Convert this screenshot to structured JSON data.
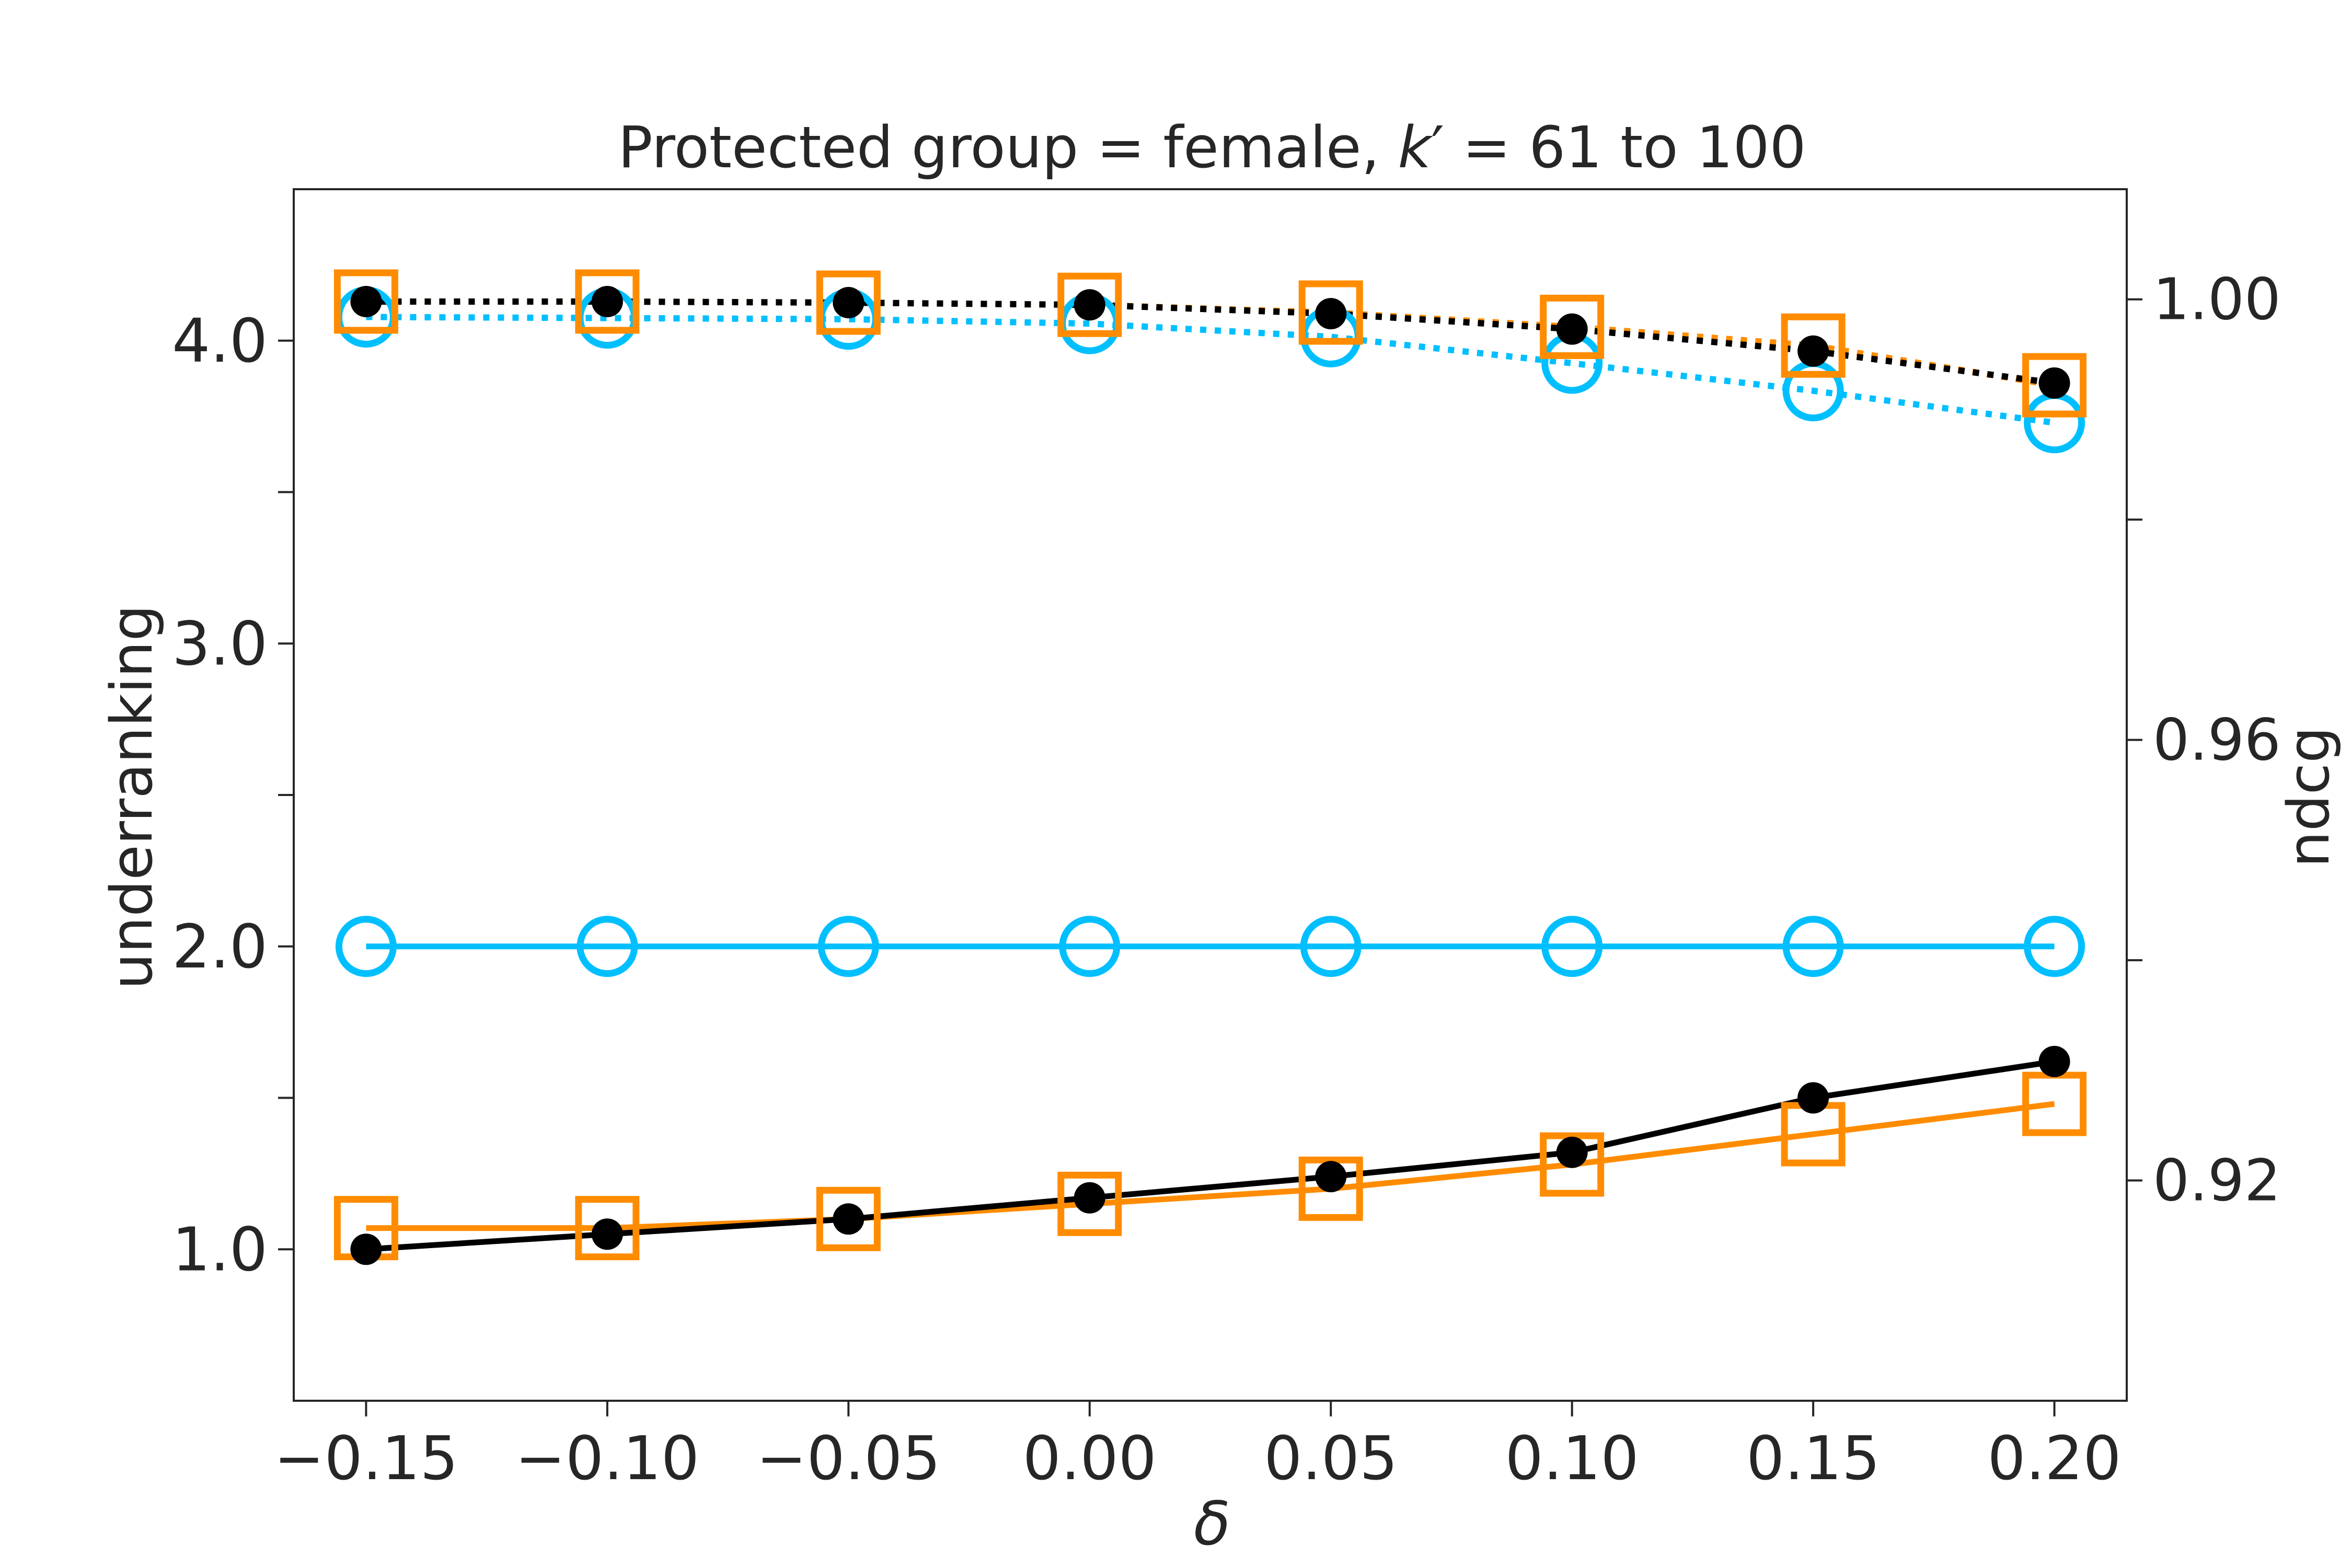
{
  "chart_data": {
    "type": "line",
    "title_main": "Protected group = female, ",
    "title_k": "k",
    "title_prime": "′",
    "title_eq": " = 61 to 100",
    "xlabel": "δ",
    "ylabel_left": "underranking",
    "ylabel_right": "ndcg",
    "x": [
      -0.15,
      -0.1,
      -0.05,
      0.0,
      0.05,
      0.1,
      0.15,
      0.2
    ],
    "x_tick_labels": [
      "−0.15",
      "−0.10",
      "−0.05",
      "0.00",
      "0.05",
      "0.10",
      "0.15",
      "0.20"
    ],
    "xlim": [
      -0.165,
      0.215
    ],
    "y_left_ticks": [
      1.0,
      1.5,
      2.0,
      2.5,
      3.0,
      3.5,
      4.0
    ],
    "y_left_tick_labels": [
      "1.0",
      "",
      "2.0",
      "",
      "3.0",
      "",
      "4.0"
    ],
    "y_left_lim": [
      0.5,
      4.5
    ],
    "y_right_ticks": [
      0.92,
      0.94,
      0.96,
      0.98,
      1.0
    ],
    "y_right_tick_labels": [
      "0.92",
      "",
      "0.96",
      "",
      "1.00"
    ],
    "y_right_lim": [
      0.9,
      1.01
    ],
    "grid": false,
    "legend": "none",
    "series": [
      {
        "axis": "left",
        "style": "solid",
        "marker": "circle-open",
        "color": "#00bfff",
        "values": [
          2.0,
          2.0,
          2.0,
          2.0,
          2.0,
          2.0,
          2.0,
          2.0
        ]
      },
      {
        "axis": "left",
        "style": "solid",
        "marker": "square-open",
        "color": "#ff8c00",
        "values": [
          1.07,
          1.07,
          1.1,
          1.15,
          1.2,
          1.28,
          1.38,
          1.48
        ]
      },
      {
        "axis": "left",
        "style": "solid",
        "marker": "dot",
        "color": "#000000",
        "values": [
          1.0,
          1.05,
          1.1,
          1.17,
          1.24,
          1.32,
          1.5,
          1.62
        ]
      },
      {
        "axis": "right",
        "style": "dotted",
        "marker": "circle-open",
        "color": "#00bfff",
        "values": [
          0.9984,
          0.9983,
          0.9982,
          0.9978,
          0.9966,
          0.9942,
          0.9917,
          0.9888
        ]
      },
      {
        "axis": "right",
        "style": "dotted",
        "marker": "square-open",
        "color": "#ff8c00",
        "values": [
          0.9998,
          0.9998,
          0.9997,
          0.9995,
          0.9988,
          0.9975,
          0.9958,
          0.9922
        ]
      },
      {
        "axis": "right",
        "style": "dotted",
        "marker": "dot",
        "color": "#000000",
        "values": [
          0.9998,
          0.9998,
          0.9997,
          0.9995,
          0.9987,
          0.9973,
          0.9953,
          0.9924
        ]
      }
    ]
  }
}
